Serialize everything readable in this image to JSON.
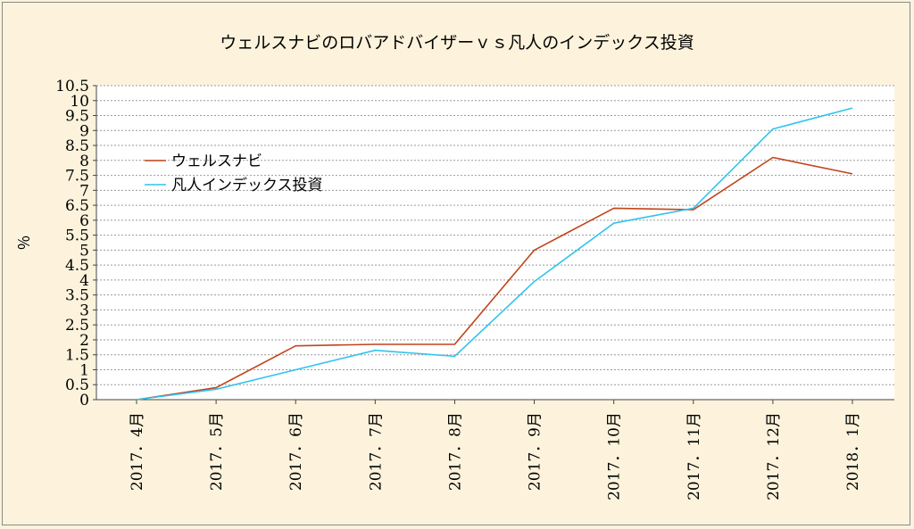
{
  "chart_data": {
    "type": "line",
    "title": "ウェルスナビのロバアドバイザーｖｓ凡人のインデックス投資",
    "ylabel": "％",
    "xlabel": "",
    "categories": [
      "2017．4月",
      "2017．5月",
      "2017．6月",
      "2017．7月",
      "2017．8月",
      "2017．9月",
      "2017．10月",
      "2017．11月",
      "2017．12月",
      "2018．1月"
    ],
    "yticks": [
      "0",
      "0.5",
      "1",
      "1.5",
      "2",
      "2.5",
      "3",
      "3.5",
      "4",
      "4.5",
      "5",
      "5.5",
      "6",
      "6.5",
      "7",
      "7.5",
      "8",
      "8.5",
      "9",
      "9.5",
      "10",
      "10.5"
    ],
    "ylim": [
      0,
      10.5
    ],
    "grid": true,
    "legend_position": "upper-left",
    "series": [
      {
        "name": "ウェルスナビ",
        "color": "#c0441a",
        "values": [
          0,
          0.4,
          1.8,
          1.85,
          1.85,
          5.0,
          6.4,
          6.35,
          8.1,
          7.55
        ]
      },
      {
        "name": "凡人インデックス投資",
        "color": "#2ec4ee",
        "values": [
          0,
          0.35,
          1.0,
          1.65,
          1.45,
          3.95,
          5.9,
          6.4,
          9.05,
          9.75
        ]
      }
    ]
  }
}
